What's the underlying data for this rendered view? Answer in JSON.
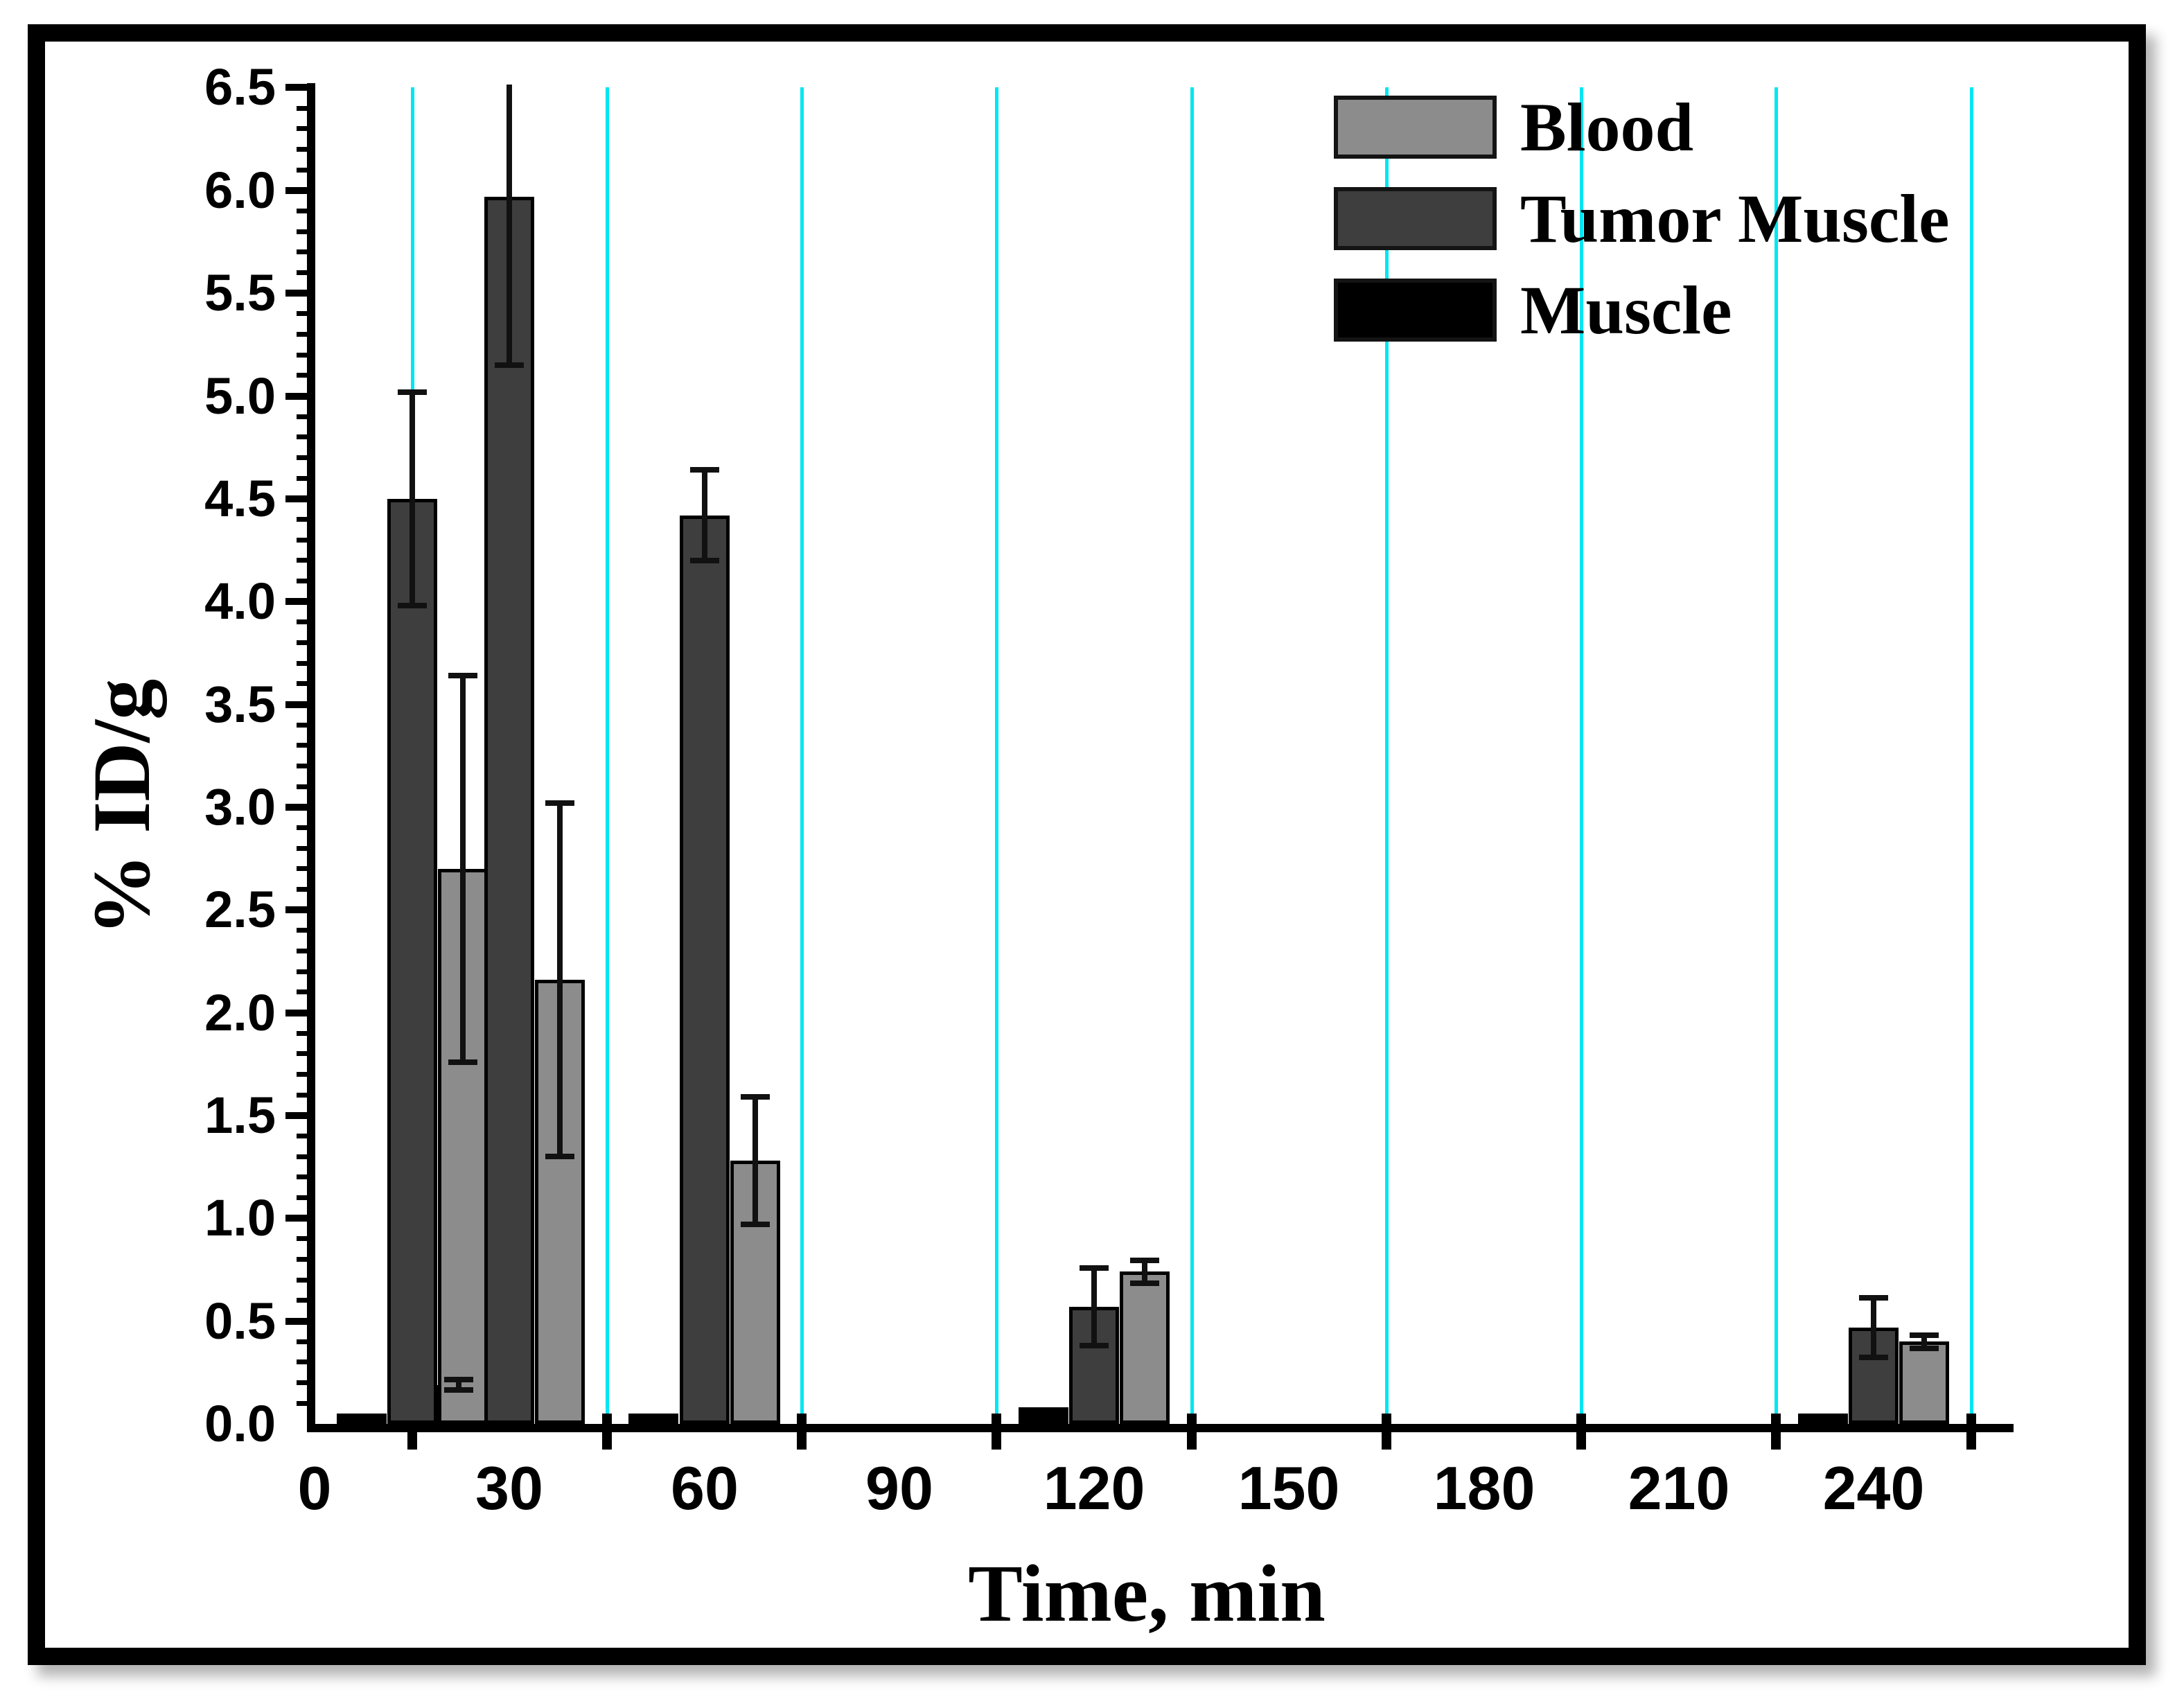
{
  "figure": {
    "background": "#ffffff",
    "frame_color": "#000000"
  },
  "chart_data": {
    "type": "bar",
    "title": "",
    "xlabel": "Time, min",
    "ylabel": "% ID/g",
    "ylim": [
      0,
      6.5
    ],
    "xlim_min": [
      0,
      261
    ],
    "y_major_tick_step": 0.5,
    "y_minor_tick_step": 0.1,
    "grid_on": true,
    "gridline_color": "#00e6f2",
    "axis_color": "#000000",
    "legend_position": "top-right",
    "x_axis_boundary_ticks_min": [
      15,
      45,
      75,
      105,
      135,
      165,
      195,
      225,
      255
    ],
    "x_tick_labels": [
      {
        "t": 0,
        "label": "0"
      },
      {
        "t": 30,
        "label": "30"
      },
      {
        "t": 60,
        "label": "60"
      },
      {
        "t": 90,
        "label": "90"
      },
      {
        "t": 120,
        "label": "120"
      },
      {
        "t": 150,
        "label": "150"
      },
      {
        "t": 180,
        "label": "180"
      },
      {
        "t": 210,
        "label": "210"
      },
      {
        "t": 240,
        "label": "240"
      }
    ],
    "y_tick_labels": [
      {
        "v": 0.0,
        "label": "0.0"
      },
      {
        "v": 0.5,
        "label": "0.5"
      },
      {
        "v": 1.0,
        "label": "1.0"
      },
      {
        "v": 1.5,
        "label": "1.5"
      },
      {
        "v": 2.0,
        "label": "2.0"
      },
      {
        "v": 2.5,
        "label": "2.5"
      },
      {
        "v": 3.0,
        "label": "3.0"
      },
      {
        "v": 3.5,
        "label": "3.5"
      },
      {
        "v": 4.0,
        "label": "4.0"
      },
      {
        "v": 4.5,
        "label": "4.5"
      },
      {
        "v": 5.0,
        "label": "5.0"
      },
      {
        "v": 5.5,
        "label": "5.5"
      },
      {
        "v": 6.0,
        "label": "6.0"
      },
      {
        "v": 6.5,
        "label": "6.5"
      }
    ],
    "categories_time_min": [
      15,
      30,
      60,
      120,
      240
    ],
    "series": [
      {
        "name": "Muscle",
        "color": "#000000",
        "offset_min": -7.8,
        "z": 1,
        "values": [
          0.05,
          0.19,
          0.05,
          0.08,
          0.05
        ],
        "errors": [
          0,
          0.026,
          0,
          0,
          0
        ]
      },
      {
        "name": "Tumor Muscle",
        "color": "#3e3e3e",
        "offset_min": 0,
        "z": 2,
        "values": [
          4.5,
          5.97,
          4.42,
          0.57,
          0.47
        ],
        "errors": [
          0.52,
          0.82,
          0.22,
          0.19,
          0.145
        ]
      },
      {
        "name": "Blood",
        "color": "#8c8c8c",
        "offset_min": 7.8,
        "z": 3,
        "values": [
          2.7,
          2.16,
          1.28,
          0.74,
          0.4
        ],
        "errors": [
          0.94,
          0.86,
          0.31,
          0.055,
          0.033
        ]
      }
    ],
    "legend": [
      {
        "label": "Blood",
        "color": "#8c8c8c"
      },
      {
        "label": "Tumor Muscle",
        "color": "#3e3e3e"
      },
      {
        "label": "Muscle",
        "color": "#000000"
      }
    ]
  }
}
